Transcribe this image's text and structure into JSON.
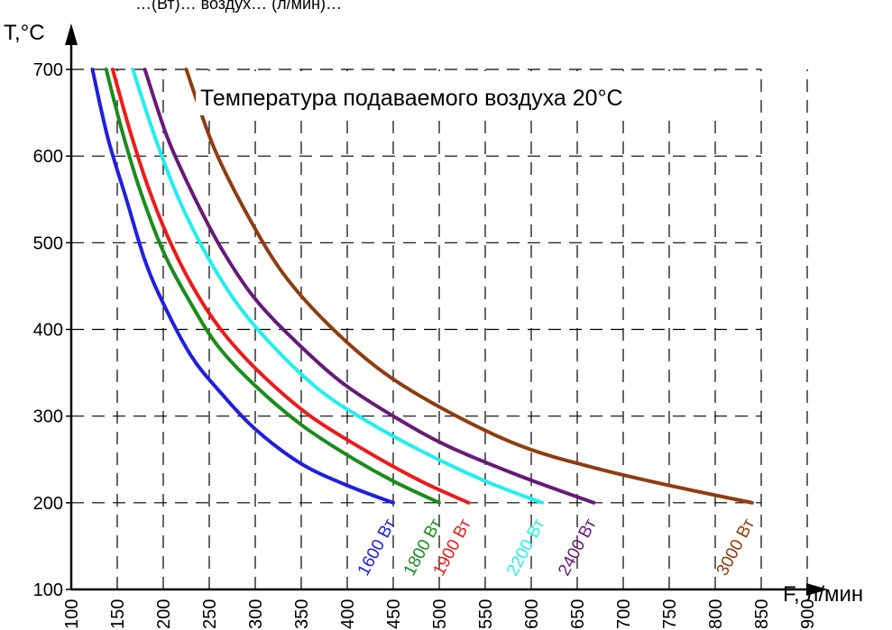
{
  "chart_data": {
    "type": "line",
    "title_cut": "…(Вт)… воздух… (л/мин)…",
    "annotation": "Температура подаваемого воздуха 20°C",
    "xlabel": "F, л/мин",
    "ylabel": "T,°C",
    "xlim": [
      100,
      900
    ],
    "ylim": [
      100,
      700
    ],
    "x_ticks": [
      100,
      150,
      200,
      250,
      300,
      350,
      400,
      450,
      500,
      550,
      600,
      650,
      700,
      750,
      800,
      850,
      900
    ],
    "y_ticks": [
      100,
      200,
      300,
      400,
      500,
      600,
      700
    ],
    "grid": true,
    "series": [
      {
        "name": "1600 Вт",
        "color": "#1f1fe0",
        "x": [
          123,
          140,
          160,
          180,
          200,
          230,
          260,
          300,
          350,
          400,
          450
        ],
        "y": [
          700,
          620,
          550,
          480,
          430,
          370,
          330,
          285,
          245,
          220,
          200
        ]
      },
      {
        "name": "1800 Вт",
        "color": "#1a8c1a",
        "x": [
          138,
          155,
          175,
          200,
          230,
          260,
          300,
          350,
          400,
          450,
          500
        ],
        "y": [
          700,
          630,
          560,
          490,
          430,
          380,
          335,
          290,
          255,
          225,
          200
        ]
      },
      {
        "name": "1900 Вт",
        "color": "#ee1a1a",
        "x": [
          145,
          165,
          185,
          210,
          240,
          270,
          310,
          360,
          420,
          480,
          532
        ],
        "y": [
          700,
          625,
          560,
          495,
          435,
          390,
          345,
          300,
          260,
          225,
          200
        ]
      },
      {
        "name": "2200 Вт",
        "color": "#22eeee",
        "x": [
          167,
          190,
          215,
          245,
          280,
          320,
          370,
          420,
          480,
          550,
          612
        ],
        "y": [
          700,
          625,
          555,
          490,
          430,
          380,
          330,
          295,
          260,
          225,
          200
        ]
      },
      {
        "name": "2400 Вт",
        "color": "#661a7a",
        "x": [
          180,
          205,
          235,
          265,
          300,
          345,
          395,
          450,
          510,
          590,
          668
        ],
        "y": [
          700,
          620,
          550,
          490,
          435,
          385,
          338,
          300,
          265,
          230,
          200
        ]
      },
      {
        "name": "3000 Вт",
        "color": "#8f3c0f",
        "x": [
          225,
          255,
          290,
          330,
          380,
          440,
          510,
          590,
          670,
          750,
          840
        ],
        "y": [
          700,
          610,
          535,
          465,
          405,
          350,
          305,
          265,
          240,
          220,
          200
        ]
      }
    ]
  }
}
